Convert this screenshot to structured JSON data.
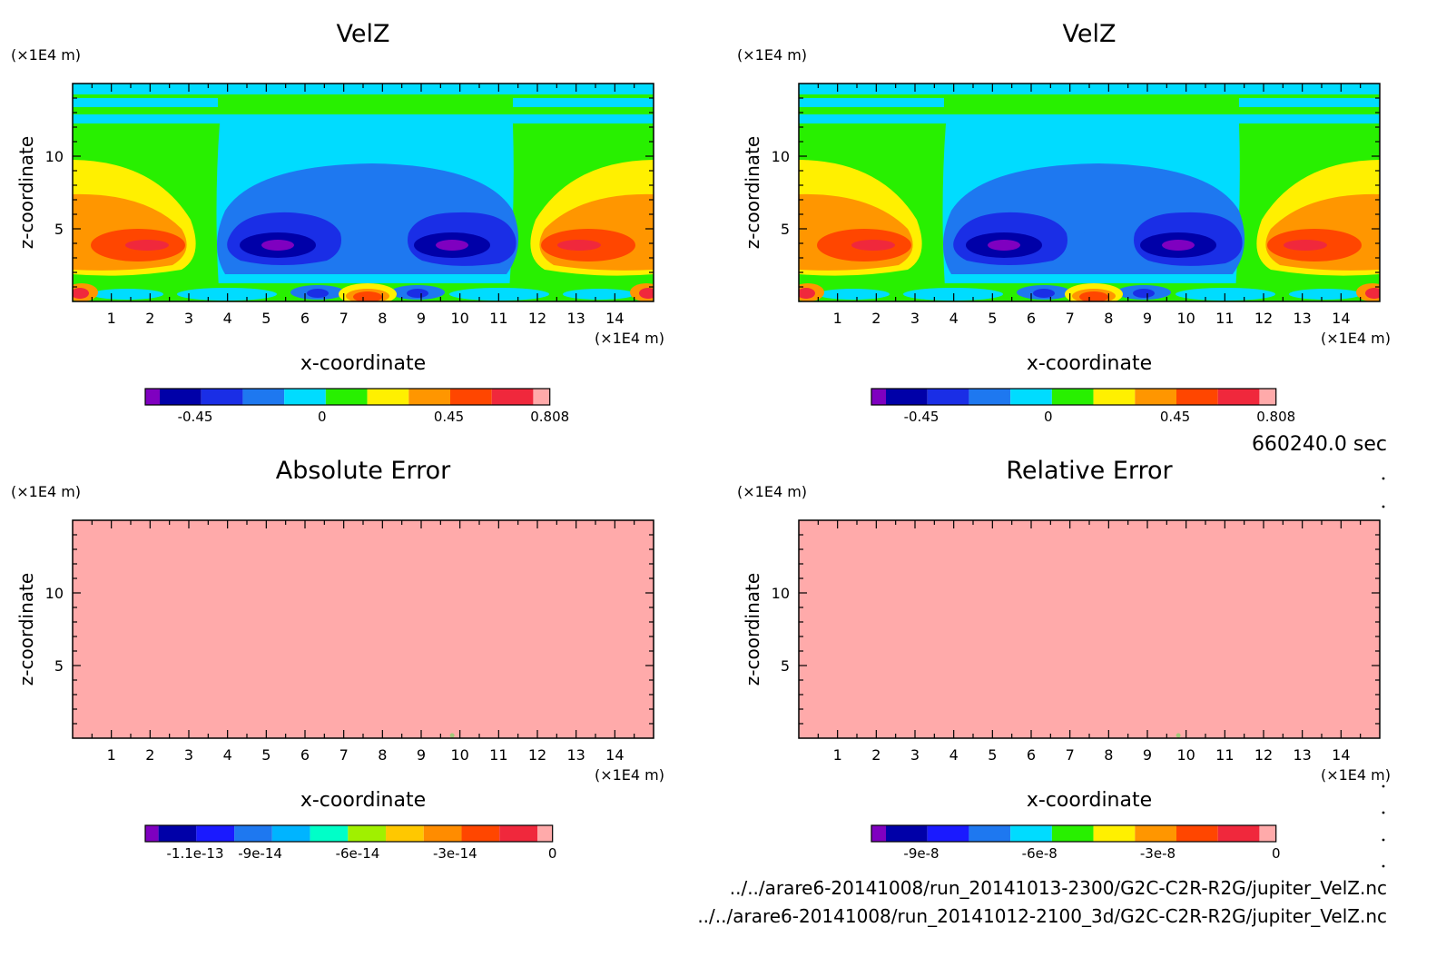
{
  "footer": {
    "time_label": "660240.0 sec",
    "file_1": "../../arare6-20141008/run_20141013-2300/G2C-C2R-R2G/jupiter_VelZ.nc",
    "file_2": "../../arare6-20141008/run_20141012-2100_3d/G2C-C2R-R2G/jupiter_VelZ.nc"
  },
  "chart_data": [
    {
      "type": "heatmap",
      "title": "VelZ",
      "xlabel": "x-coordinate",
      "ylabel": "z-coordinate",
      "x_unit": "(×1E4 m)",
      "y_unit": "(×1E4 m)",
      "xlim": [
        0,
        15
      ],
      "ylim": [
        0,
        15
      ],
      "x_ticks": [
        "1",
        "2",
        "3",
        "4",
        "5",
        "6",
        "7",
        "8",
        "9",
        "10",
        "11",
        "12",
        "13",
        "14"
      ],
      "y_ticks": [
        "5",
        "10"
      ],
      "field": "velz",
      "colorbar": {
        "colors": [
          "#7f00c0",
          "#0000a8",
          "#1a2ee6",
          "#1e78f0",
          "#00dcff",
          "#28f000",
          "#fff000",
          "#ff9600",
          "#ff4600",
          "#f0283c",
          "#ffaaaa"
        ],
        "tick_labels": [
          "-0.45",
          "0",
          "0.45",
          "0.808"
        ]
      }
    },
    {
      "type": "heatmap",
      "title": "VelZ",
      "xlabel": "x-coordinate",
      "ylabel": "z-coordinate",
      "x_unit": "(×1E4 m)",
      "y_unit": "(×1E4 m)",
      "xlim": [
        0,
        15
      ],
      "ylim": [
        0,
        15
      ],
      "x_ticks": [
        "1",
        "2",
        "3",
        "4",
        "5",
        "6",
        "7",
        "8",
        "9",
        "10",
        "11",
        "12",
        "13",
        "14"
      ],
      "y_ticks": [
        "5",
        "10"
      ],
      "field": "velz",
      "colorbar": {
        "colors": [
          "#7f00c0",
          "#0000a8",
          "#1a2ee6",
          "#1e78f0",
          "#00dcff",
          "#28f000",
          "#fff000",
          "#ff9600",
          "#ff4600",
          "#f0283c",
          "#ffaaaa"
        ],
        "tick_labels": [
          "-0.45",
          "0",
          "0.45",
          "0.808"
        ]
      }
    },
    {
      "type": "heatmap",
      "title": "Absolute Error",
      "xlabel": "x-coordinate",
      "ylabel": "z-coordinate",
      "x_unit": "(×1E4 m)",
      "y_unit": "(×1E4 m)",
      "xlim": [
        0,
        15
      ],
      "ylim": [
        0,
        15
      ],
      "x_ticks": [
        "1",
        "2",
        "3",
        "4",
        "5",
        "6",
        "7",
        "8",
        "9",
        "10",
        "11",
        "12",
        "13",
        "14"
      ],
      "y_ticks": [
        "5",
        "10"
      ],
      "field": "uniform",
      "fill_color": "#ffaaaa",
      "colorbar": {
        "colors": [
          "#7f00c0",
          "#0000a8",
          "#1a1aff",
          "#1e78f0",
          "#00b4ff",
          "#00ffc8",
          "#a0f000",
          "#ffc800",
          "#ff8c00",
          "#ff4600",
          "#f0283c",
          "#ffaaaa"
        ],
        "tick_labels": [
          "-1.1e-13",
          "-9e-14",
          "-6e-14",
          "-3e-14",
          "0"
        ]
      }
    },
    {
      "type": "heatmap",
      "title": "Relative Error",
      "xlabel": "x-coordinate",
      "ylabel": "z-coordinate",
      "x_unit": "(×1E4 m)",
      "y_unit": "(×1E4 m)",
      "xlim": [
        0,
        15
      ],
      "ylim": [
        0,
        15
      ],
      "x_ticks": [
        "1",
        "2",
        "3",
        "4",
        "5",
        "6",
        "7",
        "8",
        "9",
        "10",
        "11",
        "12",
        "13",
        "14"
      ],
      "y_ticks": [
        "5",
        "10"
      ],
      "field": "uniform",
      "fill_color": "#ffaaaa",
      "colorbar": {
        "colors": [
          "#7f00c0",
          "#0000a8",
          "#1a1aff",
          "#1e78f0",
          "#00dcff",
          "#28f000",
          "#fff000",
          "#ff9600",
          "#ff4600",
          "#f0283c",
          "#ffaaaa"
        ],
        "tick_labels": [
          "-9e-8",
          "-6e-8",
          "-3e-8",
          "0"
        ]
      }
    }
  ]
}
